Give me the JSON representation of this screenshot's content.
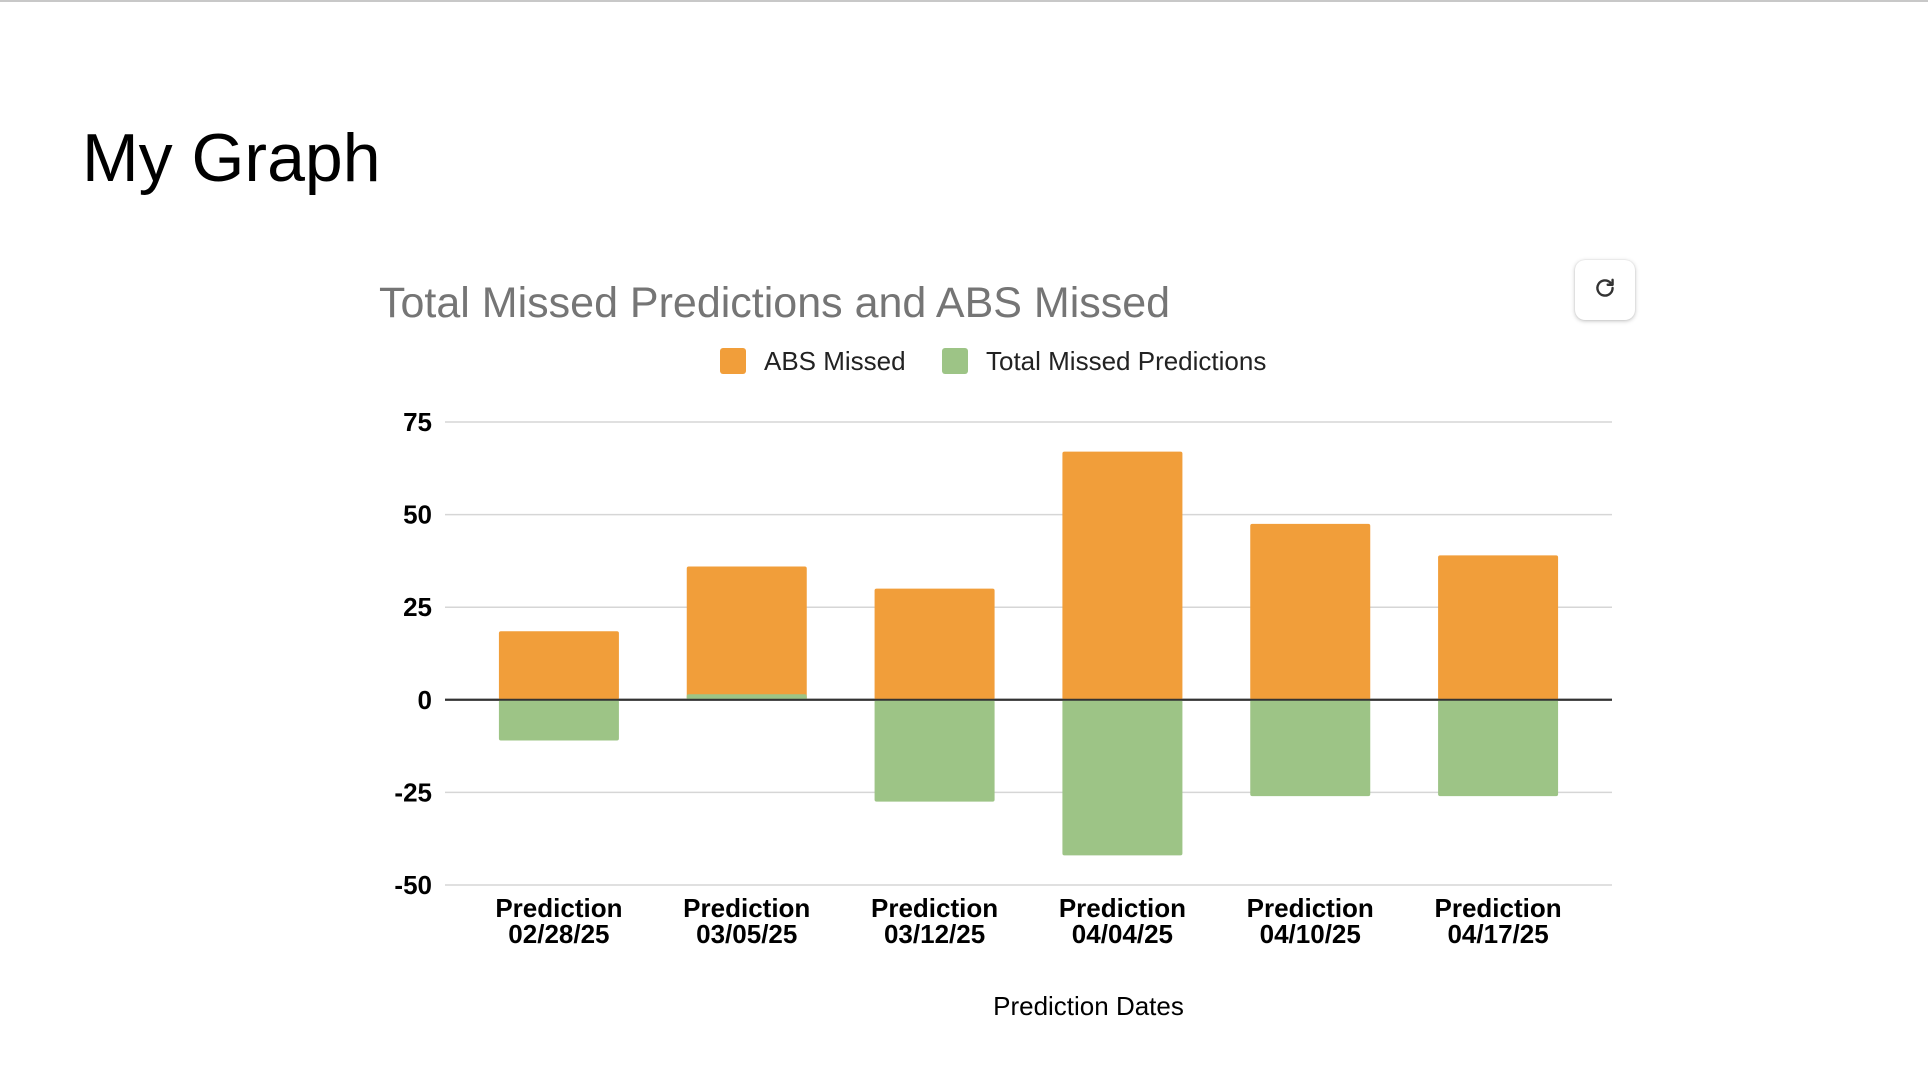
{
  "page": {
    "title": "My Graph"
  },
  "controls": {
    "refresh_icon": "refresh-icon"
  },
  "colors": {
    "abs_missed": "#F19E3A",
    "total_missed": "#9DC486",
    "grid": "#d6d6d6",
    "baseline": "#333333"
  },
  "chart_data": {
    "type": "bar",
    "stacked": true,
    "title": "Total Missed Predictions and ABS Missed",
    "xlabel": "Prediction Dates",
    "ylabel": "",
    "ylim": [
      -50,
      75
    ],
    "yticks": [
      75,
      50,
      25,
      0,
      -25,
      -50
    ],
    "grid": true,
    "legend_position": "top",
    "categories": [
      [
        "Prediction",
        "02/28/25"
      ],
      [
        "Prediction",
        "03/05/25"
      ],
      [
        "Prediction",
        "03/12/25"
      ],
      [
        "Prediction",
        "04/04/25"
      ],
      [
        "Prediction",
        "04/10/25"
      ],
      [
        "Prediction",
        "04/17/25"
      ]
    ],
    "series": [
      {
        "name": "ABS Missed",
        "color": "#F19E3A",
        "values": [
          18.5,
          36,
          30,
          67,
          47.5,
          39
        ]
      },
      {
        "name": "Total Missed Predictions",
        "color": "#9DC486",
        "values": [
          -11,
          1.5,
          -27.5,
          -42,
          -26,
          -26
        ]
      }
    ]
  }
}
